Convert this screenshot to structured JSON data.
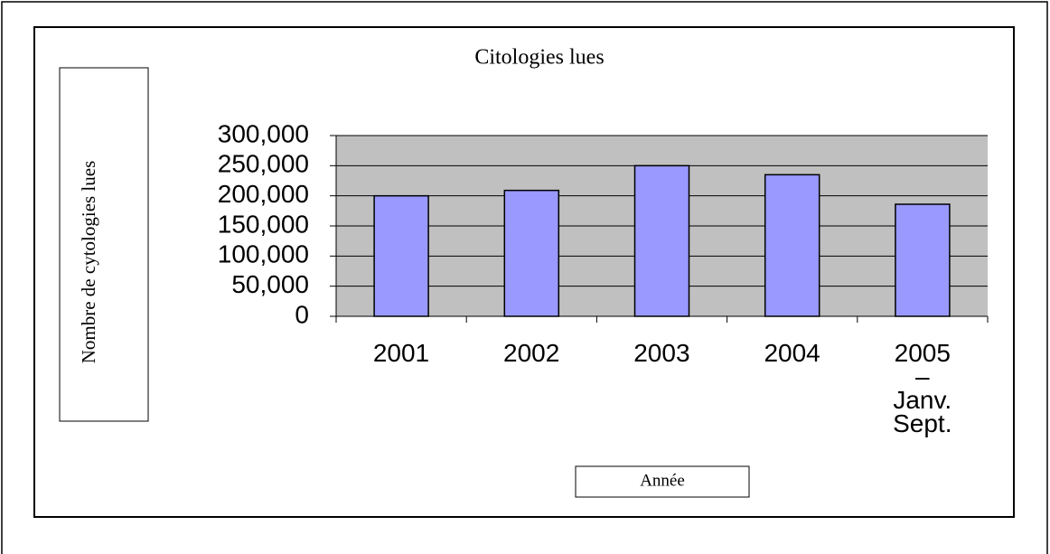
{
  "chart_data": {
    "type": "bar",
    "title": "Citologies lues",
    "y_label": "Nombre de cytologies lues",
    "x_label": "Année",
    "categories": [
      "2001",
      "2002",
      "2003",
      "2004",
      "2005\n–\nJanv.\nSept."
    ],
    "values": [
      200000,
      209000,
      250000,
      235000,
      186000
    ],
    "color": "#9999ff",
    "ylim": [
      0,
      300000
    ],
    "yticks": [
      0,
      {
        "value": 50000,
        "label": "50,000"
      },
      {
        "value": 100000,
        "label": "100,000"
      },
      {
        "value": 150000,
        "label": "150,000"
      },
      {
        "value": 200000,
        "label": "200,000"
      },
      {
        "value": 250000,
        "label": "250,000"
      },
      {
        "value": 300000,
        "label": "300,000"
      }
    ],
    "grid": true
  }
}
